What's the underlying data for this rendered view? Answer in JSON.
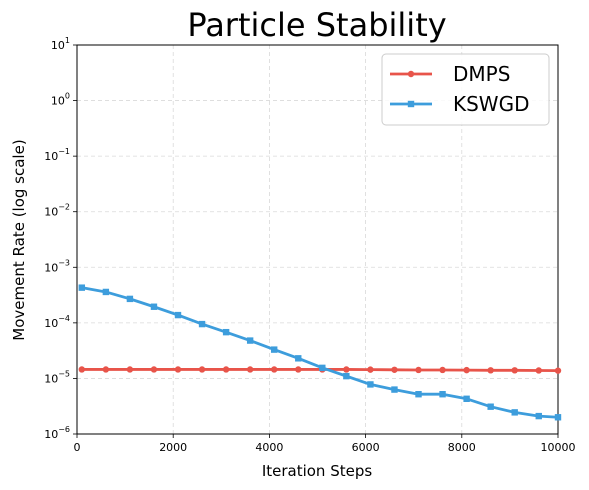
{
  "chart_data": {
    "type": "line",
    "title": "Particle Stability",
    "xlabel": "Iteration Steps",
    "ylabel": "Movement Rate (log scale)",
    "xlim": [
      0,
      10000
    ],
    "ylim": [
      1e-06,
      10
    ],
    "yscale": "log",
    "grid": true,
    "legend_position": "top-right",
    "x_ticks": [
      "0",
      "2000",
      "4000",
      "6000",
      "8000",
      "10000"
    ],
    "y_ticks": [
      {
        "base": "10",
        "exp": "1"
      },
      {
        "base": "10",
        "exp": "0"
      },
      {
        "base": "10",
        "exp": "−1"
      },
      {
        "base": "10",
        "exp": "−2"
      },
      {
        "base": "10",
        "exp": "−3"
      },
      {
        "base": "10",
        "exp": "−4"
      },
      {
        "base": "10",
        "exp": "−5"
      },
      {
        "base": "10",
        "exp": "−6"
      }
    ],
    "x": [
      100,
      600,
      1100,
      1600,
      2100,
      2600,
      3100,
      3600,
      4100,
      4600,
      5100,
      5600,
      6100,
      6600,
      7100,
      7600,
      8100,
      8600,
      9100,
      9600,
      10000
    ],
    "series": [
      {
        "name": "DMPS",
        "color": "#e8544a",
        "marker": "circle",
        "values": [
          1.45e-05,
          1.45e-05,
          1.45e-05,
          1.45e-05,
          1.45e-05,
          1.45e-05,
          1.45e-05,
          1.45e-05,
          1.45e-05,
          1.45e-05,
          1.45e-05,
          1.45e-05,
          1.44e-05,
          1.43e-05,
          1.42e-05,
          1.42e-05,
          1.41e-05,
          1.4e-05,
          1.4e-05,
          1.39e-05,
          1.38e-05
        ]
      },
      {
        "name": "KSWGD",
        "color": "#3d9ddc",
        "marker": "square",
        "values": [
          0.00043,
          0.00036,
          0.00027,
          0.000195,
          0.000138,
          9.5e-05,
          6.8e-05,
          4.8e-05,
          3.3e-05,
          2.3e-05,
          1.55e-05,
          1.1e-05,
          7.8e-06,
          6.3e-06,
          5.2e-06,
          5.2e-06,
          4.3e-06,
          3.1e-06,
          2.45e-06,
          2.1e-06,
          2e-06
        ]
      }
    ]
  }
}
